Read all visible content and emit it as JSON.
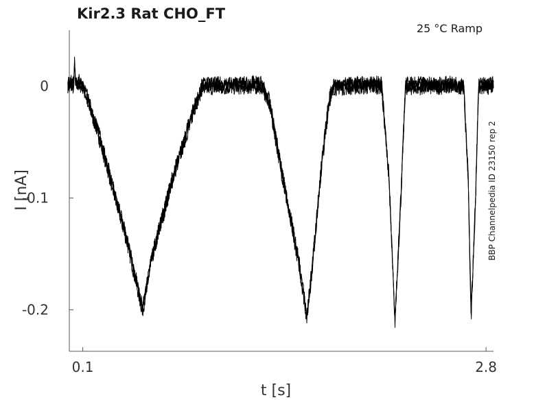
{
  "chart_data": {
    "type": "line",
    "title": "Kir2.3  Rat  CHO_FT",
    "annotation": "25 °C  Ramp",
    "side_label": "BBP Channelpedia ID 23150 rep 2",
    "xlabel": "t [s]",
    "ylabel": "I [nA]",
    "x_ticks": [
      0.1,
      2.8
    ],
    "x_tick_labels": [
      "0.1",
      "2.8"
    ],
    "y_ticks": [
      0,
      -0.1,
      -0.2
    ],
    "y_tick_labels": [
      "0",
      "-0.1",
      "-0.2"
    ],
    "xlim": [
      0.01,
      2.85
    ],
    "ylim": [
      -0.237,
      0.05
    ],
    "grid": false,
    "legend": "none",
    "series": [
      {
        "color": "#000000",
        "points": [
          [
            0.0,
            0.002
          ],
          [
            0.04,
            0.001
          ],
          [
            0.045,
            0.025
          ],
          [
            0.05,
            0.004
          ],
          [
            0.1,
            0.001
          ],
          [
            0.2,
            -0.04
          ],
          [
            0.3,
            -0.09
          ],
          [
            0.4,
            -0.14
          ],
          [
            0.5,
            -0.2
          ],
          [
            0.56,
            -0.155
          ],
          [
            0.7,
            -0.083
          ],
          [
            0.85,
            -0.018
          ],
          [
            0.9,
            0.0
          ],
          [
            1.3,
            0.001
          ],
          [
            1.35,
            -0.015
          ],
          [
            1.45,
            -0.09
          ],
          [
            1.55,
            -0.16
          ],
          [
            1.6,
            -0.206
          ],
          [
            1.63,
            -0.17
          ],
          [
            1.7,
            -0.07
          ],
          [
            1.75,
            -0.012
          ],
          [
            1.78,
            0.0
          ],
          [
            2.1,
            0.001
          ],
          [
            2.15,
            -0.08
          ],
          [
            2.19,
            -0.21
          ],
          [
            2.23,
            -0.1
          ],
          [
            2.26,
            0.0
          ],
          [
            2.65,
            0.001
          ],
          [
            2.68,
            -0.08
          ],
          [
            2.7,
            -0.205
          ],
          [
            2.73,
            -0.1
          ],
          [
            2.75,
            0.0
          ],
          [
            2.85,
            0.001
          ]
        ]
      }
    ]
  }
}
